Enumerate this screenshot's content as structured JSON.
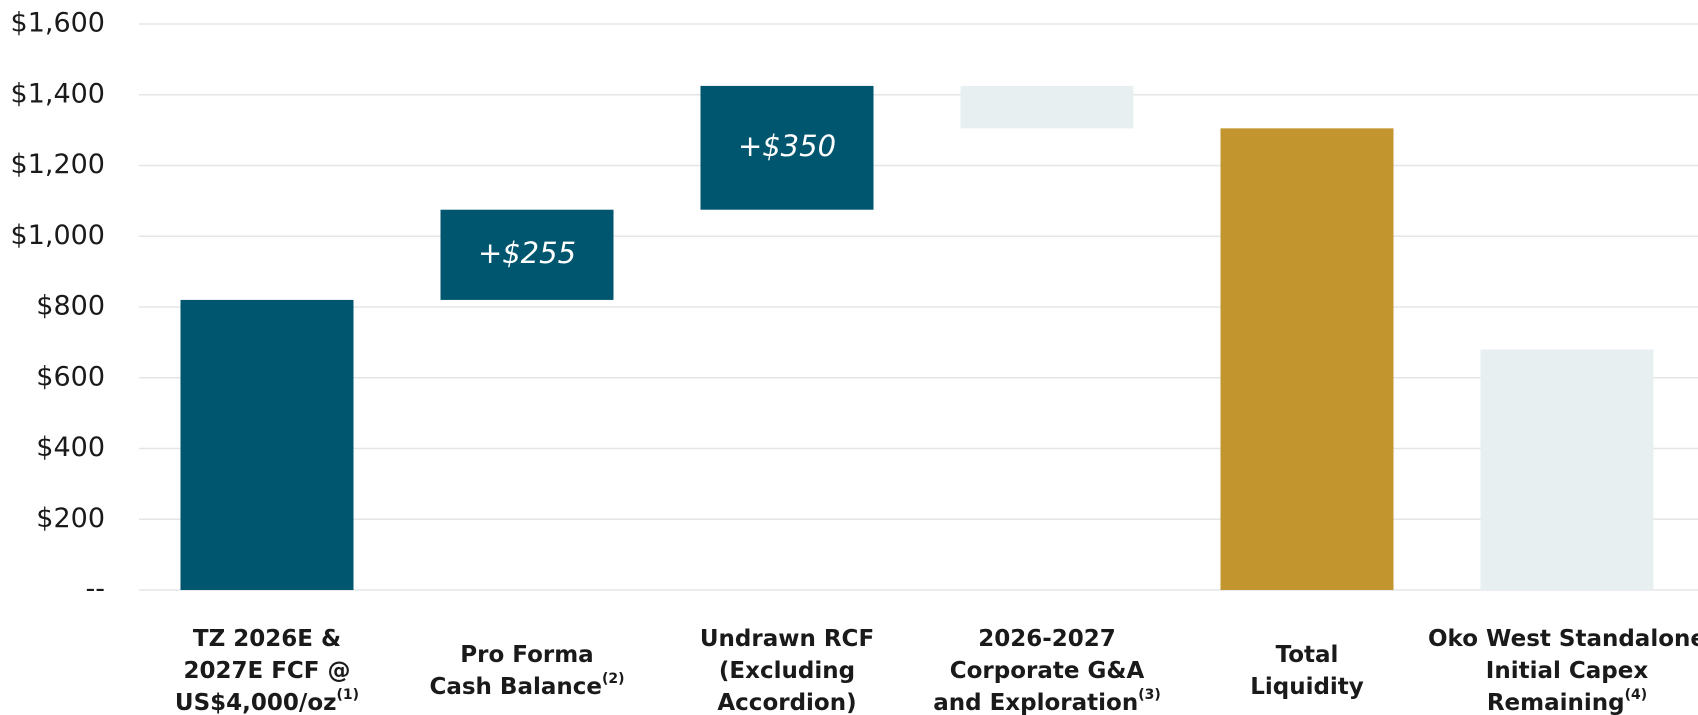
{
  "chart_data": {
    "type": "waterfall",
    "categories": [
      [
        "TZ 2026E &",
        "2027E FCF @",
        "US$4,000/oz"
      ],
      [
        "Pro Forma",
        "Cash Balance"
      ],
      [
        "Undrawn RCF",
        "(Excluding",
        "Accordion)"
      ],
      [
        "2026-2027",
        "Corporate G&A",
        "and Exploration"
      ],
      [
        "Total",
        "Liquidity"
      ],
      [
        "Oko West Standalone",
        "Initial Capex",
        "Remaining"
      ]
    ],
    "footnotes": [
      "(1)",
      "(2)",
      null,
      "(3)",
      null,
      "(4)"
    ],
    "measure": [
      "absolute",
      "relative",
      "relative",
      "relative",
      "total",
      "absolute"
    ],
    "values": [
      820,
      255,
      350,
      -120,
      1305,
      680
    ],
    "value_labels": [
      null,
      "+$255",
      "+$350",
      null,
      null,
      null
    ],
    "colors": [
      "#00566e",
      "#00566e",
      "#00566e",
      "#e8eff1",
      "#c3952f",
      "#e8eff1"
    ],
    "ylim": [
      0,
      1600
    ],
    "yticks": [
      {
        "value": 0,
        "label": "--"
      },
      {
        "value": 200,
        "label": "$200"
      },
      {
        "value": 400,
        "label": "$400"
      },
      {
        "value": 600,
        "label": "$600"
      },
      {
        "value": 800,
        "label": "$800"
      },
      {
        "value": 1000,
        "label": "$1,000"
      },
      {
        "value": 1200,
        "label": "$1,200"
      },
      {
        "value": 1400,
        "label": "$1,400"
      },
      {
        "value": 1600,
        "label": "$1,600"
      }
    ],
    "grid": true
  }
}
